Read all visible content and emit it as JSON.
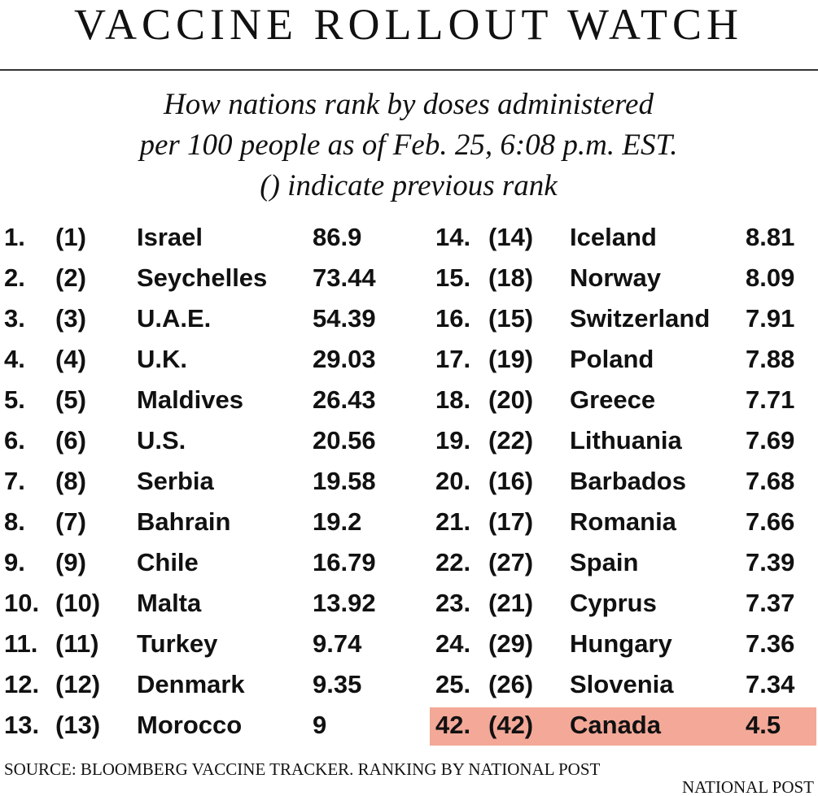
{
  "header": {
    "title": "VACCINE ROLLOUT WATCH",
    "subtitle": [
      "How nations rank by doses administered",
      "per 100 people as of Feb. 25, 6:08 p.m. EST.",
      "() indicate previous rank"
    ]
  },
  "table": {
    "columns": [
      [
        {
          "rank": "1.",
          "previous": "(1)",
          "country": "Israel",
          "value": "86.9"
        },
        {
          "rank": "2.",
          "previous": "(2)",
          "country": "Seychelles",
          "value": "73.44"
        },
        {
          "rank": "3.",
          "previous": "(3)",
          "country": "U.A.E.",
          "value": "54.39"
        },
        {
          "rank": "4.",
          "previous": "(4)",
          "country": "U.K.",
          "value": "29.03"
        },
        {
          "rank": "5.",
          "previous": "(5)",
          "country": "Maldives",
          "value": "26.43"
        },
        {
          "rank": "6.",
          "previous": "(6)",
          "country": "U.S.",
          "value": "20.56"
        },
        {
          "rank": "7.",
          "previous": "(8)",
          "country": "Serbia",
          "value": "19.58"
        },
        {
          "rank": "8.",
          "previous": "(7)",
          "country": "Bahrain",
          "value": "19.2"
        },
        {
          "rank": "9.",
          "previous": "(9)",
          "country": "Chile",
          "value": "16.79"
        },
        {
          "rank": "10.",
          "previous": "(10)",
          "country": "Malta",
          "value": "13.92"
        },
        {
          "rank": "11.",
          "previous": "(11)",
          "country": "Turkey",
          "value": "9.74"
        },
        {
          "rank": "12.",
          "previous": "(12)",
          "country": "Denmark",
          "value": "9.35"
        },
        {
          "rank": "13.",
          "previous": "(13)",
          "country": "Morocco",
          "value": "9"
        }
      ],
      [
        {
          "rank": "14.",
          "previous": "(14)",
          "country": "Iceland",
          "value": "8.81"
        },
        {
          "rank": "15.",
          "previous": "(18)",
          "country": "Norway",
          "value": "8.09"
        },
        {
          "rank": "16.",
          "previous": "(15)",
          "country": "Switzerland",
          "value": "7.91"
        },
        {
          "rank": "17.",
          "previous": "(19)",
          "country": "Poland",
          "value": "7.88"
        },
        {
          "rank": "18.",
          "previous": "(20)",
          "country": "Greece",
          "value": "7.71"
        },
        {
          "rank": "19.",
          "previous": "(22)",
          "country": "Lithuania",
          "value": "7.69"
        },
        {
          "rank": "20.",
          "previous": "(16)",
          "country": "Barbados",
          "value": "7.68"
        },
        {
          "rank": "21.",
          "previous": "(17)",
          "country": "Romania",
          "value": "7.66"
        },
        {
          "rank": "22.",
          "previous": "(27)",
          "country": "Spain",
          "value": "7.39"
        },
        {
          "rank": "23.",
          "previous": "(21)",
          "country": "Cyprus",
          "value": "7.37"
        },
        {
          "rank": "24.",
          "previous": "(29)",
          "country": "Hungary",
          "value": "7.36"
        },
        {
          "rank": "25.",
          "previous": "(26)",
          "country": "Slovenia",
          "value": "7.34"
        },
        {
          "rank": "42.",
          "previous": "(42)",
          "country": "Canada",
          "value": "4.5",
          "highlight": "#f4a898"
        }
      ]
    ]
  },
  "footer": {
    "source": "SOURCE: BLOOMBERG VACCINE TRACKER. RANKING BY NATIONAL POST",
    "credit": "NATIONAL POST"
  }
}
